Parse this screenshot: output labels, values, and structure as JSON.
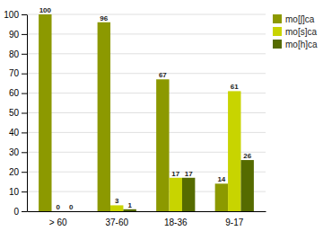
{
  "chart_data": {
    "type": "bar",
    "categories": [
      "> 60",
      "37-60",
      "18-36",
      "9-17"
    ],
    "series": [
      {
        "name": "mo[ʃ]ca",
        "color": "#8c9900",
        "values": [
          100,
          96,
          67,
          14
        ]
      },
      {
        "name": "mo[s]ca",
        "color": "#c8d400",
        "values": [
          0,
          3,
          17,
          61
        ]
      },
      {
        "name": "mo[h]ca",
        "color": "#556b00",
        "values": [
          0,
          1,
          17,
          26
        ]
      }
    ],
    "ylim": [
      0,
      100
    ],
    "yticks": [
      0,
      10,
      20,
      30,
      40,
      50,
      60,
      70,
      80,
      90,
      100
    ],
    "grid": true,
    "legend": "upper right",
    "data_labels": true
  }
}
